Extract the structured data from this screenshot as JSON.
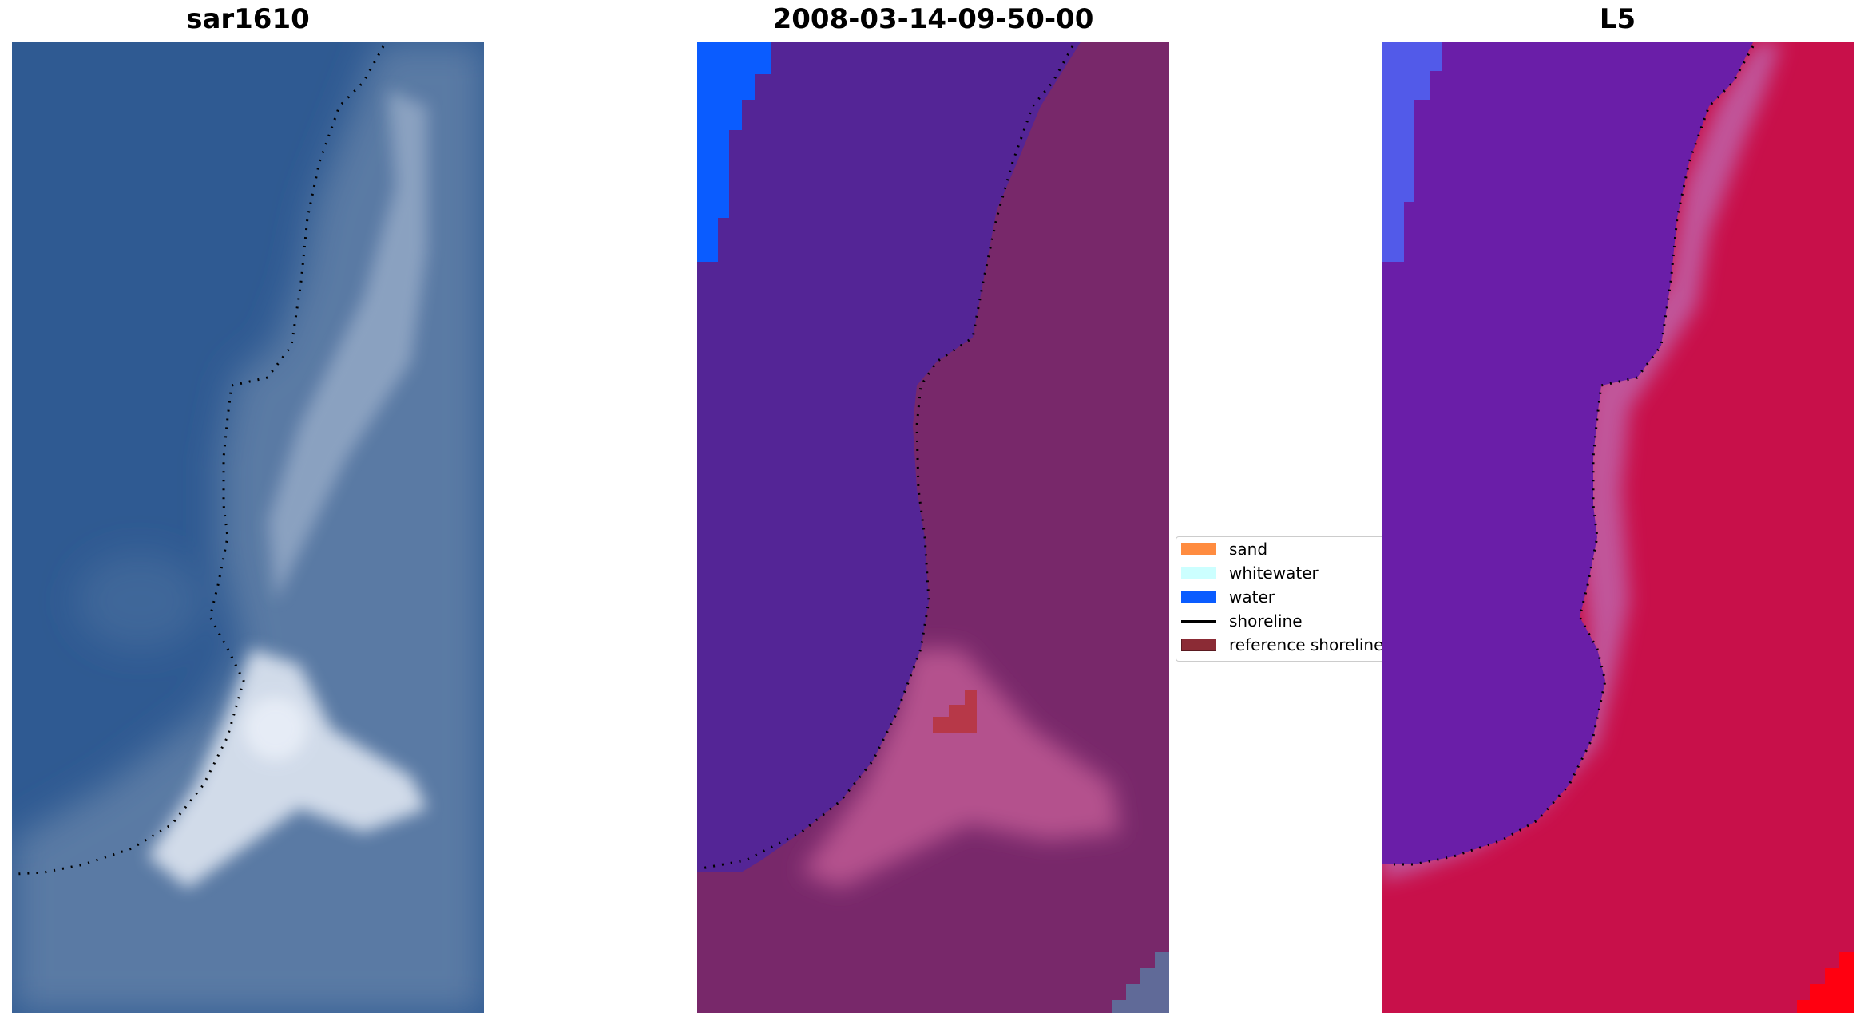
{
  "panels": [
    {
      "title": "sar1610",
      "colors": {
        "water": "#2f5a92",
        "land": "#5a7aa4",
        "foam": "#e6ecf6"
      }
    },
    {
      "title": "2008-03-14-09-50-00",
      "colors": {
        "water": "#542596",
        "land": "#78286a",
        "foam": "#c8609a",
        "water_class": "#0a5cff",
        "reference": "#b73848"
      }
    },
    {
      "title": "L5",
      "colors": {
        "water": "#6a1ea8",
        "land": "#c8104a",
        "foam": "#c060a8",
        "water_class": "#5060f0",
        "edge": "#ff0010"
      }
    }
  ],
  "legend": {
    "items": [
      {
        "label": "sand",
        "kind": "patch",
        "color": "#ff8c40"
      },
      {
        "label": "whitewater",
        "kind": "patch",
        "color": "#ccffff"
      },
      {
        "label": "water",
        "kind": "patch",
        "color": "#0a5cff"
      },
      {
        "label": "shoreline",
        "kind": "line",
        "color": "#000000"
      },
      {
        "label": "reference shoreline",
        "kind": "patch",
        "color": "#8b2b35"
      }
    ]
  }
}
